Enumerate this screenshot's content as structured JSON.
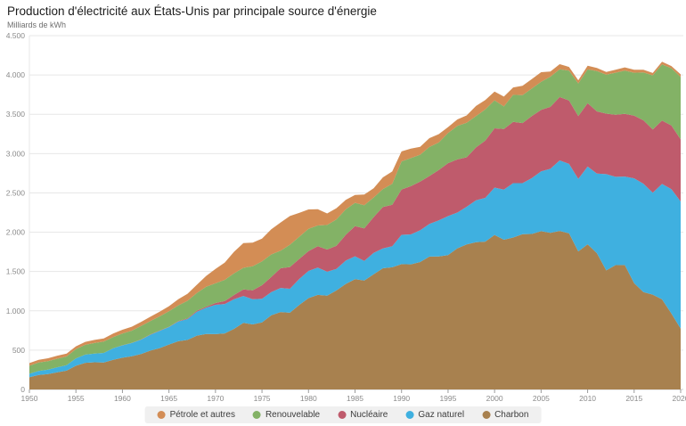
{
  "header": {
    "title": "Production d'électricité aux États-Unis par principale source d'énergie",
    "subtitle": "Milliards de kWh"
  },
  "chart_data": {
    "type": "area",
    "stacked": true,
    "title": "Production d'électricité aux États-Unis par principale source d'énergie",
    "ylabel": "Milliards de kWh",
    "xlabel": "",
    "ylim": [
      0,
      4500
    ],
    "grid": true,
    "legend_position": "bottom",
    "y_ticks": [
      0,
      500,
      1000,
      1500,
      2000,
      2500,
      3000,
      3500,
      4000,
      4500
    ],
    "y_tick_labels": [
      "0",
      "500",
      "1.000",
      "1.500",
      "2.000",
      "2.500",
      "3.000",
      "3.500",
      "4.000",
      "4.500"
    ],
    "x_ticks": [
      1950,
      1955,
      1960,
      1965,
      1970,
      1975,
      1980,
      1985,
      1990,
      1995,
      2000,
      2005,
      2010,
      2015,
      2020
    ],
    "years": [
      1950,
      1951,
      1952,
      1953,
      1954,
      1955,
      1956,
      1957,
      1958,
      1959,
      1960,
      1961,
      1962,
      1963,
      1964,
      1965,
      1966,
      1967,
      1968,
      1969,
      1970,
      1971,
      1972,
      1973,
      1974,
      1975,
      1976,
      1977,
      1978,
      1979,
      1980,
      1981,
      1982,
      1983,
      1984,
      1985,
      1986,
      1987,
      1988,
      1989,
      1990,
      1991,
      1992,
      1993,
      1994,
      1995,
      1996,
      1997,
      1998,
      1999,
      2000,
      2001,
      2002,
      2003,
      2004,
      2005,
      2006,
      2007,
      2008,
      2009,
      2010,
      2011,
      2012,
      2013,
      2014,
      2015,
      2016,
      2017,
      2018,
      2019,
      2020
    ],
    "series": [
      {
        "name": "Charbon",
        "color": "#a8814f",
        "values": [
          155,
          185,
          195,
          219,
          239,
          301,
          339,
          346,
          344,
          378,
          403,
          422,
          450,
          494,
          526,
          571,
          613,
          630,
          685,
          706,
          704,
          713,
          771,
          848,
          828,
          853,
          944,
          985,
          976,
          1075,
          1162,
          1203,
          1192,
          1259,
          1342,
          1402,
          1386,
          1464,
          1541,
          1554,
          1594,
          1591,
          1621,
          1690,
          1691,
          1709,
          1795,
          1845,
          1874,
          1881,
          1966,
          1904,
          1933,
          1974,
          1978,
          2013,
          1991,
          2016,
          1986,
          1756,
          1847,
          1733,
          1514,
          1581,
          1582,
          1352,
          1239,
          1206,
          1146,
          966,
          774
        ]
      },
      {
        "name": "Gaz naturel",
        "color": "#3fb0e0",
        "values": [
          45,
          51,
          57,
          63,
          70,
          95,
          104,
          110,
          121,
          147,
          158,
          169,
          184,
          202,
          220,
          222,
          251,
          265,
          304,
          333,
          373,
          374,
          376,
          341,
          320,
          300,
          295,
          306,
          305,
          329,
          346,
          346,
          305,
          274,
          297,
          292,
          249,
          273,
          253,
          267,
          373,
          381,
          404,
          415,
          460,
          496,
          455,
          479,
          531,
          556,
          601,
          639,
          691,
          650,
          710,
          761,
          816,
          897,
          883,
          921,
          988,
          1013,
          1225,
          1124,
          1126,
          1333,
          1378,
          1296,
          1468,
          1582,
          1617
        ]
      },
      {
        "name": "Nucléaire",
        "color": "#bf5b6c",
        "values": [
          0,
          0,
          0,
          0,
          0,
          0,
          0,
          0,
          0,
          0,
          1,
          2,
          2,
          3,
          3,
          4,
          6,
          8,
          13,
          14,
          22,
          38,
          54,
          83,
          114,
          173,
          191,
          251,
          276,
          255,
          251,
          273,
          283,
          294,
          328,
          384,
          414,
          455,
          527,
          529,
          577,
          613,
          619,
          610,
          640,
          673,
          675,
          629,
          674,
          728,
          754,
          769,
          780,
          764,
          788,
          782,
          787,
          806,
          806,
          799,
          807,
          790,
          769,
          789,
          797,
          797,
          806,
          805,
          807,
          809,
          790
        ]
      },
      {
        "name": "Renouvelable",
        "color": "#83b266",
        "values": [
          101,
          106,
          109,
          109,
          110,
          116,
          125,
          134,
          144,
          141,
          149,
          155,
          172,
          172,
          181,
          197,
          198,
          225,
          226,
          253,
          251,
          269,
          276,
          275,
          304,
          303,
          287,
          224,
          284,
          283,
          285,
          264,
          312,
          335,
          324,
          295,
          294,
          250,
          228,
          265,
          357,
          358,
          342,
          369,
          350,
          384,
          427,
          439,
          398,
          396,
          356,
          288,
          343,
          355,
          351,
          357,
          385,
          352,
          381,
          417,
          428,
          513,
          495,
          534,
          551,
          546,
          610,
          687,
          713,
          728,
          792
        ]
      },
      {
        "name": "Pétrole et autres",
        "color": "#d38d55",
        "values": [
          34,
          35,
          36,
          39,
          38,
          37,
          37,
          40,
          41,
          46,
          48,
          50,
          51,
          54,
          59,
          65,
          79,
          89,
          104,
          138,
          184,
          220,
          274,
          314,
          301,
          289,
          320,
          358,
          365,
          304,
          246,
          206,
          147,
          144,
          120,
          100,
          137,
          118,
          149,
          158,
          127,
          120,
          101,
          113,
          106,
          75,
          82,
          93,
          129,
          121,
          111,
          125,
          95,
          120,
          121,
          122,
          64,
          66,
          46,
          39,
          48,
          39,
          36,
          38,
          41,
          38,
          34,
          31,
          34,
          29,
          35
        ]
      }
    ]
  },
  "legend": {
    "items": [
      {
        "label": "Pétrole et autres",
        "color": "#d38d55"
      },
      {
        "label": "Renouvelable",
        "color": "#83b266"
      },
      {
        "label": "Nucléaire",
        "color": "#bf5b6c"
      },
      {
        "label": "Gaz naturel",
        "color": "#3fb0e0"
      },
      {
        "label": "Charbon",
        "color": "#a8814f"
      }
    ]
  },
  "colors": {
    "grid_line": "#e7e7e7",
    "axis_line": "#cfcfcf",
    "tick_mark": "#9a9a9a",
    "tick_text": "#8a8a8a",
    "legend_bg": "#f0f0f0"
  }
}
